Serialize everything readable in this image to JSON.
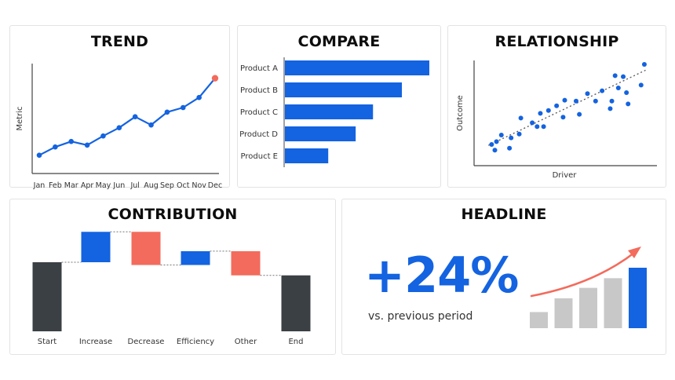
{
  "colors": {
    "blue": "#1463e0",
    "red": "#f36b5c",
    "dark": "#3b4045",
    "gray": "#c8c8c8",
    "axis": "#444444"
  },
  "chart_data": [
    {
      "type": "line",
      "title": "TREND",
      "ylabel": "Metric",
      "categories": [
        "Jan",
        "Feb",
        "Mar",
        "Apr",
        "May",
        "Jun",
        "Jul",
        "Aug",
        "Sep",
        "Oct",
        "Nov",
        "Dec"
      ],
      "values": [
        20,
        29,
        35,
        31,
        41,
        50,
        62,
        53,
        67,
        72,
        83,
        104
      ],
      "ylim": [
        0,
        120
      ],
      "highlight_last": true
    },
    {
      "type": "bar",
      "orientation": "horizontal",
      "title": "COMPARE",
      "categories": [
        "Product A",
        "Product B",
        "Product C",
        "Product D",
        "Product E"
      ],
      "values": [
        100,
        81,
        61,
        49,
        30
      ],
      "xlim": [
        0,
        100
      ]
    },
    {
      "type": "scatter",
      "title": "RELATIONSHIP",
      "xlabel": "Driver",
      "ylabel": "Outcome",
      "xlim": [
        0,
        100
      ],
      "ylim": [
        0,
        100
      ],
      "points": [
        [
          5,
          15
        ],
        [
          8,
          18
        ],
        [
          7,
          9
        ],
        [
          11,
          25
        ],
        [
          17,
          22
        ],
        [
          16,
          11
        ],
        [
          22,
          26
        ],
        [
          23,
          43
        ],
        [
          30,
          38
        ],
        [
          33,
          34
        ],
        [
          37,
          34
        ],
        [
          35,
          48
        ],
        [
          40,
          51
        ],
        [
          45,
          56
        ],
        [
          49,
          44
        ],
        [
          50,
          62
        ],
        [
          57,
          61
        ],
        [
          59,
          47
        ],
        [
          64,
          69
        ],
        [
          69,
          61
        ],
        [
          73,
          72
        ],
        [
          78,
          53
        ],
        [
          79,
          61
        ],
        [
          81,
          88
        ],
        [
          83,
          75
        ],
        [
          86,
          87
        ],
        [
          88,
          70
        ],
        [
          89,
          58
        ],
        [
          97,
          78
        ],
        [
          99,
          100
        ]
      ],
      "trendline": {
        "from": [
          3,
          14
        ],
        "to": [
          100,
          94
        ]
      }
    },
    {
      "type": "waterfall",
      "title": "CONTRIBUTION",
      "categories": [
        "Start",
        "Increase",
        "Decrease",
        "Efficiency",
        "Other",
        "End"
      ],
      "steps": [
        {
          "kind": "total",
          "value": 100
        },
        {
          "kind": "increase",
          "value": 44
        },
        {
          "kind": "decrease",
          "value": -48
        },
        {
          "kind": "increase",
          "value": 20
        },
        {
          "kind": "decrease",
          "value": -35
        },
        {
          "kind": "total",
          "value": 81
        }
      ],
      "ylim": [
        0,
        150
      ]
    },
    {
      "type": "bar",
      "title": "HEADLINE",
      "headline": "+24%",
      "subtext": "vs. previous period",
      "values": [
        20,
        37,
        50,
        62,
        75
      ],
      "ylim": [
        0,
        75
      ],
      "highlight_last": true
    }
  ]
}
